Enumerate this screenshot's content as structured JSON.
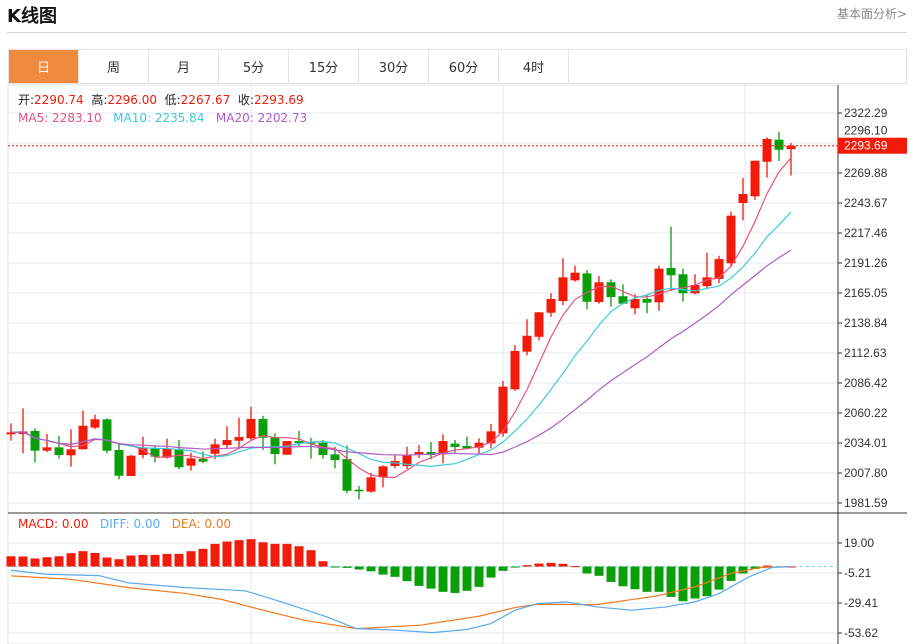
{
  "header": {
    "title": "K线图",
    "link": "基本面分析>"
  },
  "tabs": [
    "日",
    "周",
    "月",
    "5分",
    "15分",
    "30分",
    "60分",
    "4时"
  ],
  "active_tab": 0,
  "ohlc_info": {
    "open_label": "开:",
    "open": "2290.74",
    "high_label": "高:",
    "high": "2296.00",
    "low_label": "低:",
    "low": "2267.67",
    "close_label": "收:",
    "close": "2293.69"
  },
  "ma_info": {
    "ma5": "MA5: 2283.10",
    "ma10": "MA10: 2235.84",
    "ma20": "MA20: 2202.73"
  },
  "macd_info": {
    "macd": "MACD: 0.00",
    "diff": "DIFF: 0.00",
    "dea": "DEA: 0.00"
  },
  "colors": {
    "up": "#f21a08",
    "down": "#0a9e0a",
    "ma5": "#e8517f",
    "ma10": "#3ec9db",
    "ma20": "#b359c8",
    "diff": "#5aaaf0",
    "dea": "#f0791e",
    "accent": "#f08a3c"
  },
  "chart_data": {
    "type": "candlestick",
    "price_axis": {
      "ticks": [
        "2322.29",
        "2296.10",
        "2269.88",
        "2243.67",
        "2217.46",
        "2191.26",
        "2165.05",
        "2138.84",
        "2112.63",
        "2086.42",
        "2060.22",
        "2034.01",
        "2007.80",
        "1981.59"
      ],
      "range": [
        1981.59,
        2322.29
      ]
    },
    "last_price": "2293.69",
    "ohlc": [
      [
        2041.6,
        2051.2,
        2036.0,
        2043.3
      ],
      [
        2041.9,
        2064.3,
        2025.0,
        2044.1
      ],
      [
        2044.5,
        2046.8,
        2017.1,
        2027.3
      ],
      [
        2027.3,
        2041.8,
        2026.1,
        2030.2
      ],
      [
        2030.2,
        2040.1,
        2020.3,
        2023.5
      ],
      [
        2023.2,
        2046.0,
        2013.3,
        2028.5
      ],
      [
        2028.5,
        2062.2,
        2028.5,
        2049.1
      ],
      [
        2047.4,
        2058.7,
        2046.0,
        2054.7
      ],
      [
        2054.7,
        2055.6,
        2025.0,
        2027.3
      ],
      [
        2027.9,
        2033.7,
        2002.3,
        2005.4
      ],
      [
        2005.2,
        2023.5,
        2005.2,
        2022.9
      ],
      [
        2023.5,
        2039.5,
        2020.6,
        2029.9
      ],
      [
        2029.4,
        2032.2,
        2017.1,
        2022.0
      ],
      [
        2021.2,
        2037.8,
        2020.3,
        2028.8
      ],
      [
        2028.8,
        2036.6,
        2011.0,
        2012.8
      ],
      [
        2014.2,
        2025.5,
        2009.8,
        2020.6
      ],
      [
        2020.0,
        2026.7,
        2016.3,
        2017.7
      ],
      [
        2024.6,
        2037.8,
        2019.8,
        2032.9
      ],
      [
        2032.2,
        2048.8,
        2029.0,
        2036.6
      ],
      [
        2036.0,
        2056.1,
        2030.3,
        2039.2
      ],
      [
        2038.1,
        2065.7,
        2036.6,
        2055.0
      ],
      [
        2055.0,
        2057.8,
        2027.9,
        2038.6
      ],
      [
        2039.0,
        2042.5,
        2015.4,
        2024.4
      ],
      [
        2023.8,
        2035.7,
        2023.8,
        2035.7
      ],
      [
        2035.7,
        2044.5,
        2031.4,
        2034.0
      ],
      [
        2035.1,
        2038.6,
        2020.3,
        2033.4
      ],
      [
        2034.2,
        2036.6,
        2020.3,
        2023.5
      ],
      [
        2024.1,
        2030.8,
        2011.9,
        2019.1
      ],
      [
        2020.0,
        2032.0,
        1990.1,
        1992.3
      ],
      [
        1993.2,
        1996.4,
        1984.8,
        1991.8
      ],
      [
        1991.5,
        2008.0,
        1990.6,
        2004.0
      ],
      [
        2004.0,
        2014.5,
        1995.3,
        2013.6
      ],
      [
        2013.9,
        2022.9,
        2011.9,
        2018.3
      ],
      [
        2013.9,
        2030.8,
        2011.3,
        2023.5
      ],
      [
        2023.5,
        2032.2,
        2020.9,
        2026.1
      ],
      [
        2026.1,
        2034.9,
        2019.8,
        2023.5
      ],
      [
        2024.1,
        2041.6,
        2016.3,
        2035.7
      ],
      [
        2033.4,
        2036.6,
        2025.5,
        2030.5
      ],
      [
        2031.4,
        2039.5,
        2028.5,
        2029.4
      ],
      [
        2029.9,
        2038.1,
        2025.0,
        2034.2
      ],
      [
        2033.7,
        2050.6,
        2029.4,
        2044.2
      ],
      [
        2042.5,
        2088.2,
        2039.5,
        2083.2
      ],
      [
        2080.9,
        2119.6,
        2079.7,
        2114.4
      ],
      [
        2113.8,
        2142.1,
        2110.6,
        2127.7
      ],
      [
        2126.8,
        2148.2,
        2123.7,
        2148.2
      ],
      [
        2147.8,
        2164.8,
        2144.3,
        2159.8
      ],
      [
        2158.0,
        2195.3,
        2154.3,
        2178.7
      ],
      [
        2176.1,
        2188.9,
        2174.9,
        2182.8
      ],
      [
        2182.2,
        2185.1,
        2150.8,
        2157.4
      ],
      [
        2157.2,
        2179.9,
        2155.7,
        2174.4
      ],
      [
        2174.4,
        2177.0,
        2153.1,
        2161.5
      ],
      [
        2162.2,
        2172.6,
        2155.2,
        2155.7
      ],
      [
        2151.7,
        2163.9,
        2146.4,
        2159.8
      ],
      [
        2159.8,
        2163.3,
        2147.3,
        2156.6
      ],
      [
        2156.9,
        2188.9,
        2149.6,
        2186.3
      ],
      [
        2186.9,
        2222.9,
        2166.8,
        2180.5
      ],
      [
        2181.4,
        2186.3,
        2157.4,
        2164.8
      ],
      [
        2164.8,
        2181.4,
        2163.9,
        2172.0
      ],
      [
        2171.1,
        2200.2,
        2168.3,
        2178.7
      ],
      [
        2177.3,
        2197.6,
        2173.5,
        2194.7
      ],
      [
        2191.0,
        2236.1,
        2187.5,
        2232.6
      ],
      [
        2243.7,
        2265.5,
        2228.5,
        2251.5
      ],
      [
        2249.5,
        2280.6,
        2246.3,
        2280.6
      ],
      [
        2279.7,
        2301.1,
        2265.8,
        2299.6
      ],
      [
        2299.0,
        2306.0,
        2280.4,
        2290.2
      ],
      [
        2290.74,
        2296.0,
        2267.67,
        2293.69
      ]
    ],
    "macd_axis": {
      "ticks": [
        "19.00",
        "-5.21",
        "-29.41",
        "-53.62"
      ],
      "range": [
        -53.62,
        19.0
      ]
    },
    "macd_hist": [
      8.3,
      8.1,
      6.5,
      7.5,
      8.3,
      10.8,
      12.4,
      11.0,
      7.3,
      5.9,
      8.9,
      9.4,
      9.4,
      10.2,
      10.2,
      12.4,
      14.3,
      18.3,
      20.2,
      21.3,
      22.1,
      19.6,
      18.3,
      18.3,
      16.4,
      13.2,
      4.3,
      -0.3,
      -1.1,
      -2.4,
      -3.8,
      -6.5,
      -8.3,
      -11.8,
      -15.6,
      -17.8,
      -20.4,
      -21.3,
      -19.6,
      -16.4,
      -8.9,
      -3.5,
      -0.3,
      1.1,
      2.4,
      3.0,
      2.2,
      0.3,
      -5.6,
      -7.5,
      -12.4,
      -15.9,
      -18.3,
      -20.4,
      -20.4,
      -24.5,
      -28.0,
      -25.8,
      -23.9,
      -18.6,
      -11.6,
      -5.6,
      -1.9,
      0.8,
      0,
      0
    ],
    "diff": [
      [
        0,
        -3.0
      ],
      [
        2.9,
        -6.2
      ],
      [
        7.3,
        -7.3
      ],
      [
        9.8,
        -13.2
      ],
      [
        14.6,
        -17.0
      ],
      [
        19.5,
        -19.6
      ],
      [
        21,
        -23.9
      ],
      [
        23.4,
        -31.2
      ],
      [
        26.3,
        -40.6
      ],
      [
        28.8,
        -50.1
      ],
      [
        32.2,
        -51.4
      ],
      [
        35.1,
        -53.3
      ],
      [
        38,
        -50.8
      ],
      [
        40,
        -46.0
      ],
      [
        42,
        -35.2
      ],
      [
        43.9,
        -29.9
      ],
      [
        46.3,
        -28.5
      ],
      [
        48.8,
        -32.6
      ],
      [
        51.7,
        -35.2
      ],
      [
        54.6,
        -32.6
      ],
      [
        57,
        -28.5
      ],
      [
        59,
        -21.8
      ],
      [
        61.5,
        -8.3
      ],
      [
        63.4,
        -0.8
      ],
      [
        65,
        0
      ]
    ],
    "dea": [
      [
        0,
        -7.5
      ],
      [
        4.9,
        -10.2
      ],
      [
        9.8,
        -17.0
      ],
      [
        14.6,
        -21.8
      ],
      [
        17.6,
        -26.6
      ],
      [
        21,
        -35.2
      ],
      [
        24.4,
        -43.3
      ],
      [
        28.8,
        -50.1
      ],
      [
        34.1,
        -47.3
      ],
      [
        39,
        -40.1
      ],
      [
        42,
        -33.1
      ],
      [
        43.9,
        -30.4
      ],
      [
        48.8,
        -30.7
      ],
      [
        53.7,
        -23.9
      ],
      [
        57,
        -16.4
      ],
      [
        60,
        -5.6
      ],
      [
        62.4,
        -0.8
      ],
      [
        65,
        0
      ]
    ]
  }
}
